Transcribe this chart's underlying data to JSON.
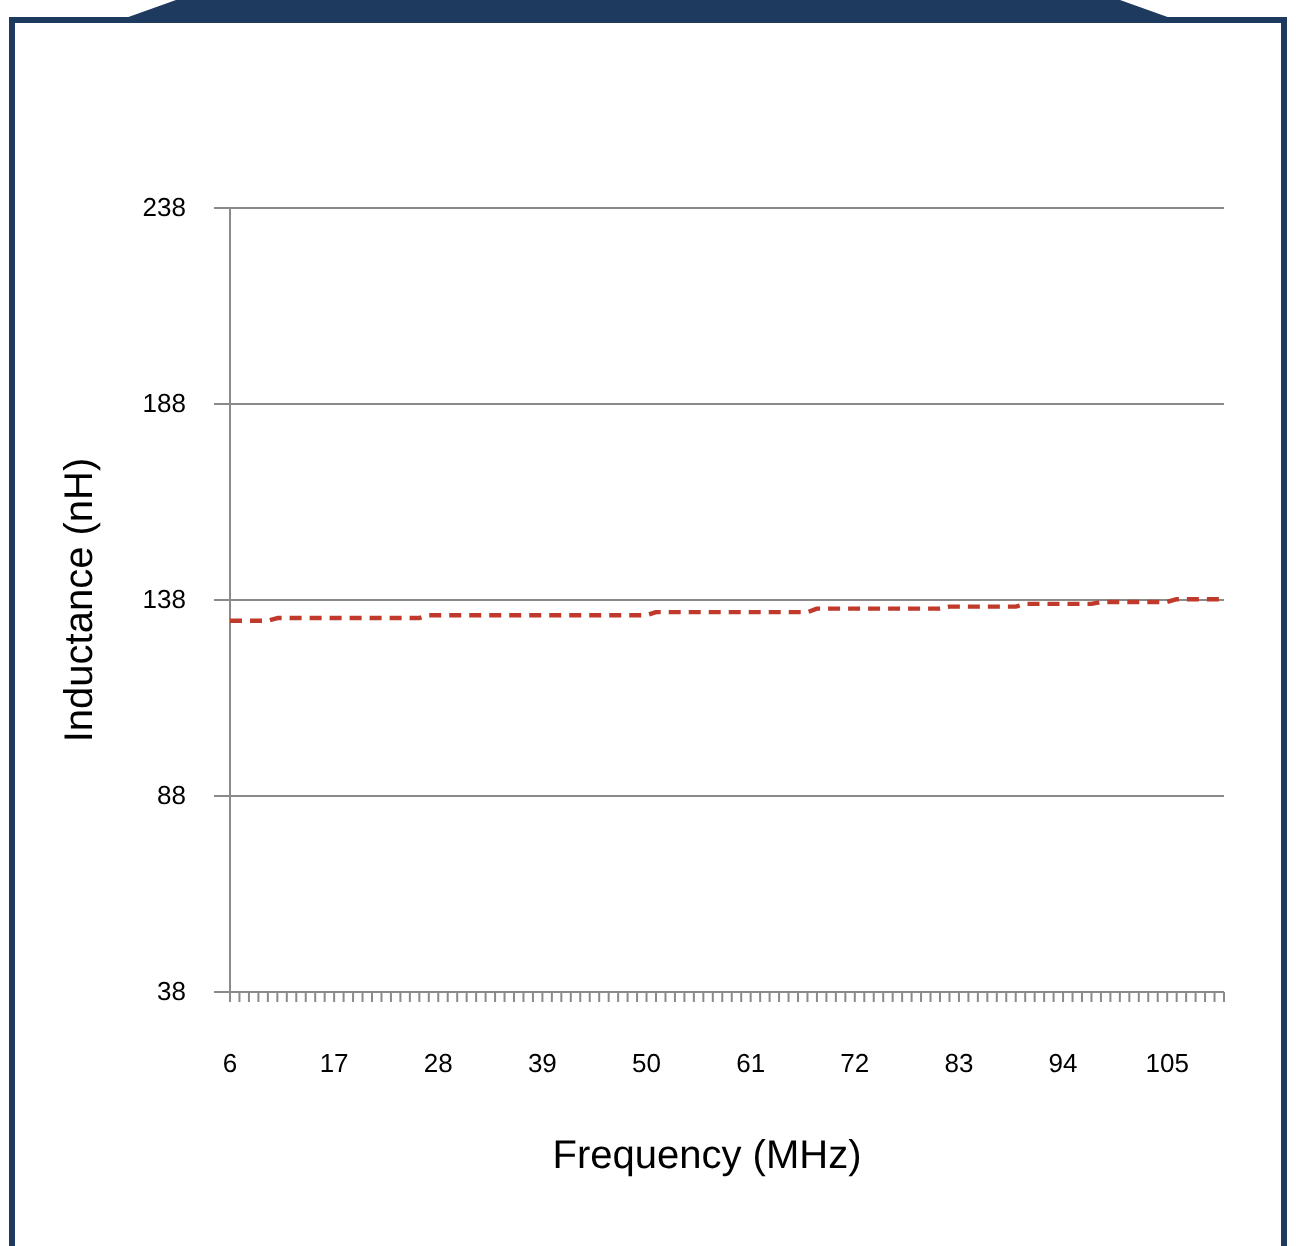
{
  "chart_data": {
    "type": "line",
    "xlabel": "Frequency (MHz)",
    "ylabel": "Inductance (nH)",
    "x": [
      6,
      10,
      11,
      26,
      27,
      50,
      51,
      67,
      68,
      81,
      82,
      89,
      90,
      97,
      98,
      105,
      106,
      111
    ],
    "series": [
      {
        "color": "#c0392b",
        "values": [
          132.7,
          132.7,
          133.4,
          133.4,
          134.1,
          134.1,
          134.9,
          134.9,
          135.8,
          135.8,
          136.3,
          136.3,
          137,
          137,
          137.5,
          137.5,
          138.2,
          138.2
        ]
      }
    ],
    "xlim": [
      6,
      111
    ],
    "xticks": [
      6,
      {
        "value": 7,
        "label": null
      },
      {
        "value": 8,
        "label": null
      },
      {
        "value": 9,
        "label": null
      },
      {
        "value": 10,
        "label": null
      },
      {
        "value": 11,
        "label": null
      },
      {
        "value": 12,
        "label": null
      },
      {
        "value": 13,
        "label": null
      },
      {
        "value": 14,
        "label": null
      },
      {
        "value": 15,
        "label": null
      },
      {
        "value": 16,
        "label": null
      },
      17,
      {
        "value": 18,
        "label": null
      },
      {
        "value": 19,
        "label": null
      },
      {
        "value": 20,
        "label": null
      },
      {
        "value": 21,
        "label": null
      },
      {
        "value": 22,
        "label": null
      },
      {
        "value": 23,
        "label": null
      },
      {
        "value": 24,
        "label": null
      },
      {
        "value": 25,
        "label": null
      },
      {
        "value": 26,
        "label": null
      },
      {
        "value": 27,
        "label": null
      },
      28,
      {
        "value": 29,
        "label": null
      },
      {
        "value": 30,
        "label": null
      },
      {
        "value": 31,
        "label": null
      },
      {
        "value": 32,
        "label": null
      },
      {
        "value": 33,
        "label": null
      },
      {
        "value": 34,
        "label": null
      },
      {
        "value": 35,
        "label": null
      },
      {
        "value": 36,
        "label": null
      },
      {
        "value": 37,
        "label": null
      },
      {
        "value": 38,
        "label": null
      },
      39,
      {
        "value": 40,
        "label": null
      },
      {
        "value": 41,
        "label": null
      },
      {
        "value": 42,
        "label": null
      },
      {
        "value": 43,
        "label": null
      },
      {
        "value": 44,
        "label": null
      },
      {
        "value": 45,
        "label": null
      },
      {
        "value": 46,
        "label": null
      },
      {
        "value": 47,
        "label": null
      },
      {
        "value": 48,
        "label": null
      },
      {
        "value": 49,
        "label": null
      },
      50,
      {
        "value": 51,
        "label": null
      },
      {
        "value": 52,
        "label": null
      },
      {
        "value": 53,
        "label": null
      },
      {
        "value": 54,
        "label": null
      },
      {
        "value": 55,
        "label": null
      },
      {
        "value": 56,
        "label": null
      },
      {
        "value": 57,
        "label": null
      },
      {
        "value": 58,
        "label": null
      },
      {
        "value": 59,
        "label": null
      },
      {
        "value": 60,
        "label": null
      },
      61,
      {
        "value": 62,
        "label": null
      },
      {
        "value": 63,
        "label": null
      },
      {
        "value": 64,
        "label": null
      },
      {
        "value": 65,
        "label": null
      },
      {
        "value": 66,
        "label": null
      },
      {
        "value": 67,
        "label": null
      },
      {
        "value": 68,
        "label": null
      },
      {
        "value": 69,
        "label": null
      },
      {
        "value": 70,
        "label": null
      },
      {
        "value": 71,
        "label": null
      },
      72,
      {
        "value": 73,
        "label": null
      },
      {
        "value": 74,
        "label": null
      },
      {
        "value": 75,
        "label": null
      },
      {
        "value": 76,
        "label": null
      },
      {
        "value": 77,
        "label": null
      },
      {
        "value": 78,
        "label": null
      },
      {
        "value": 79,
        "label": null
      },
      {
        "value": 80,
        "label": null
      },
      {
        "value": 81,
        "label": null
      },
      {
        "value": 82,
        "label": null
      },
      83,
      {
        "value": 84,
        "label": null
      },
      {
        "value": 85,
        "label": null
      },
      {
        "value": 86,
        "label": null
      },
      {
        "value": 87,
        "label": null
      },
      {
        "value": 88,
        "label": null
      },
      {
        "value": 89,
        "label": null
      },
      {
        "value": 90,
        "label": null
      },
      {
        "value": 91,
        "label": null
      },
      {
        "value": 92,
        "label": null
      },
      {
        "value": 93,
        "label": null
      },
      94,
      {
        "value": 95,
        "label": null
      },
      {
        "value": 96,
        "label": null
      },
      {
        "value": 97,
        "label": null
      },
      {
        "value": 98,
        "label": null
      },
      {
        "value": 99,
        "label": null
      },
      {
        "value": 100,
        "label": null
      },
      {
        "value": 101,
        "label": null
      },
      {
        "value": 102,
        "label": null
      },
      {
        "value": 103,
        "label": null
      },
      {
        "value": 104,
        "label": null
      },
      105,
      {
        "value": 106,
        "label": null
      },
      {
        "value": 107,
        "label": null
      },
      {
        "value": 108,
        "label": null
      },
      {
        "value": 109,
        "label": null
      },
      {
        "value": 110,
        "label": null
      },
      {
        "value": 111,
        "label": null
      }
    ],
    "ylim": [
      38,
      238
    ],
    "yticks": [
      38,
      88,
      138,
      188,
      238
    ],
    "grid": "y",
    "marker": "none",
    "line_style": "dashed"
  }
}
